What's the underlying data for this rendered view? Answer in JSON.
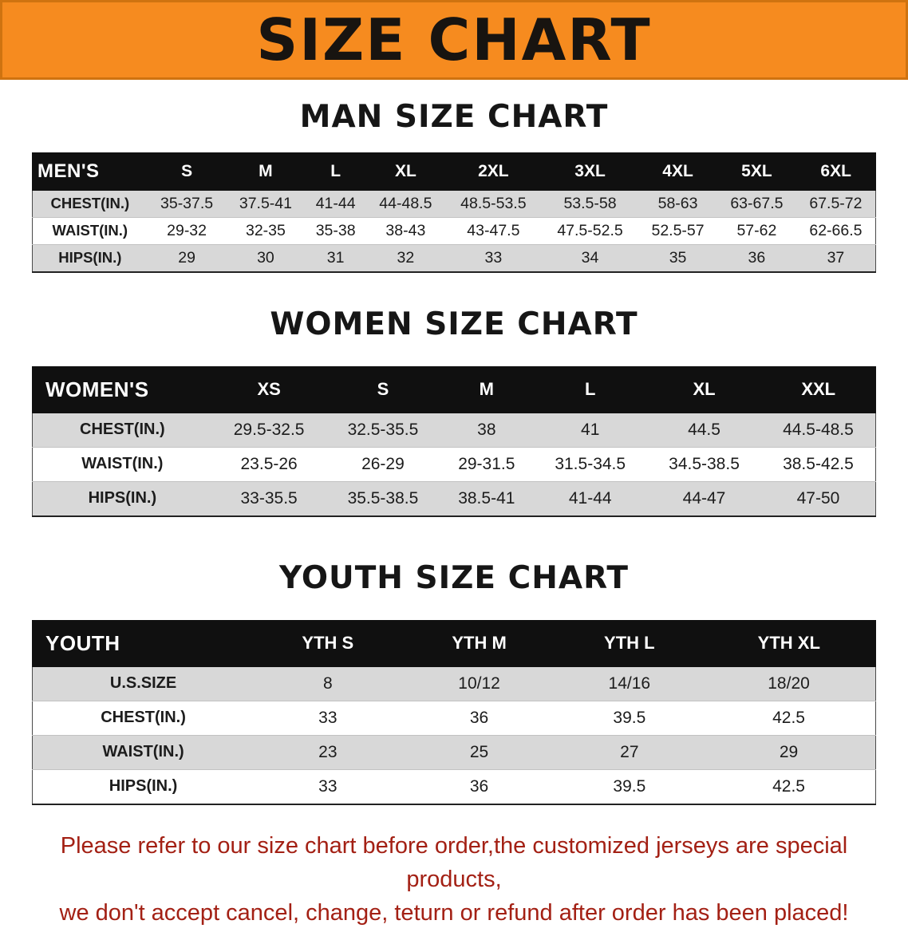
{
  "banner": {
    "title": "SIZE CHART",
    "bg_color": "#f68b1f",
    "text_color": "#181410"
  },
  "colors": {
    "table_header_bg": "#101010",
    "table_header_text": "#ffffff",
    "row_shade": "#d8d8d8",
    "footer_text": "#a32014"
  },
  "sections": [
    {
      "heading": "MAN SIZE CHART",
      "table": {
        "name": "mens-size-table",
        "header": [
          "MEN'S",
          "S",
          "M",
          "L",
          "XL",
          "2XL",
          "3XL",
          "4XL",
          "5XL",
          "6XL"
        ],
        "rows": [
          [
            "CHEST(IN.)",
            "35-37.5",
            "37.5-41",
            "41-44",
            "44-48.5",
            "48.5-53.5",
            "53.5-58",
            "58-63",
            "63-67.5",
            "67.5-72"
          ],
          [
            "WAIST(IN.)",
            "29-32",
            "32-35",
            "35-38",
            "38-43",
            "43-47.5",
            "47.5-52.5",
            "52.5-57",
            "57-62",
            "62-66.5"
          ],
          [
            "HIPS(IN.)",
            "29",
            "30",
            "31",
            "32",
            "33",
            "34",
            "35",
            "36",
            "37"
          ]
        ]
      }
    },
    {
      "heading": "WOMEN SIZE CHART",
      "table": {
        "name": "womens-size-table",
        "header": [
          "WOMEN'S",
          "XS",
          "S",
          "M",
          "L",
          "XL",
          "XXL"
        ],
        "rows": [
          [
            "CHEST(IN.)",
            "29.5-32.5",
            "32.5-35.5",
            "38",
            "41",
            "44.5",
            "44.5-48.5"
          ],
          [
            "WAIST(IN.)",
            "23.5-26",
            "26-29",
            "29-31.5",
            "31.5-34.5",
            "34.5-38.5",
            "38.5-42.5"
          ],
          [
            "HIPS(IN.)",
            "33-35.5",
            "35.5-38.5",
            "38.5-41",
            "41-44",
            "44-47",
            "47-50"
          ]
        ]
      }
    },
    {
      "heading": "YOUTH SIZE CHART",
      "table": {
        "name": "youth-size-table",
        "header": [
          "YOUTH",
          "YTH S",
          "YTH M",
          "YTH L",
          "YTH XL"
        ],
        "rows": [
          [
            "U.S.SIZE",
            "8",
            "10/12",
            "14/16",
            "18/20"
          ],
          [
            "CHEST(IN.)",
            "33",
            "36",
            "39.5",
            "42.5"
          ],
          [
            "WAIST(IN.)",
            "23",
            "25",
            "27",
            "29"
          ],
          [
            "HIPS(IN.)",
            "33",
            "36",
            "39.5",
            "42.5"
          ]
        ]
      }
    }
  ],
  "footer": {
    "lines": [
      "Please refer to our size chart before order,the customized jerseys are special products,",
      "we don't accept cancel, change, teturn or refund after order has been placed!"
    ]
  }
}
